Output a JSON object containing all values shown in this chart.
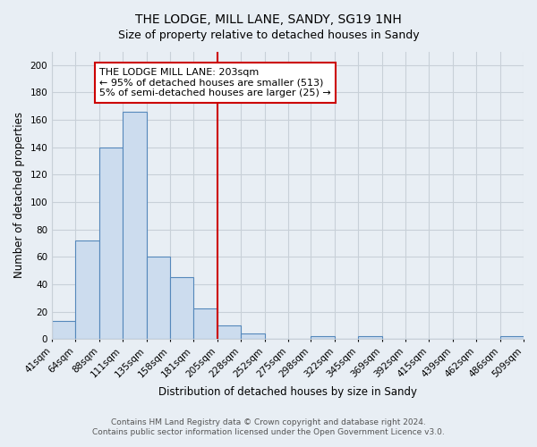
{
  "title": "THE LODGE, MILL LANE, SANDY, SG19 1NH",
  "subtitle": "Size of property relative to detached houses in Sandy",
  "xlabel": "Distribution of detached houses by size in Sandy",
  "ylabel": "Number of detached properties",
  "bar_color": "#ccdcee",
  "bar_edge_color": "#5588bb",
  "bin_labels": [
    "41sqm",
    "64sqm",
    "88sqm",
    "111sqm",
    "135sqm",
    "158sqm",
    "181sqm",
    "205sqm",
    "228sqm",
    "252sqm",
    "275sqm",
    "298sqm",
    "322sqm",
    "345sqm",
    "369sqm",
    "392sqm",
    "415sqm",
    "439sqm",
    "462sqm",
    "486sqm",
    "509sqm"
  ],
  "bin_edges": [
    41,
    64,
    88,
    111,
    135,
    158,
    181,
    205,
    228,
    252,
    275,
    298,
    322,
    345,
    369,
    392,
    415,
    439,
    462,
    486,
    509
  ],
  "bar_heights": [
    13,
    72,
    140,
    166,
    60,
    45,
    22,
    10,
    4,
    0,
    0,
    2,
    0,
    2,
    0,
    0,
    0,
    0,
    0,
    2
  ],
  "vline_x": 205,
  "vline_color": "#cc0000",
  "ylim": [
    0,
    210
  ],
  "yticks": [
    0,
    20,
    40,
    60,
    80,
    100,
    120,
    140,
    160,
    180,
    200
  ],
  "annotation_title": "THE LODGE MILL LANE: 203sqm",
  "annotation_line1": "← 95% of detached houses are smaller (513)",
  "annotation_line2": "5% of semi-detached houses are larger (25) →",
  "footer_line1": "Contains HM Land Registry data © Crown copyright and database right 2024.",
  "footer_line2": "Contains public sector information licensed under the Open Government Licence v3.0.",
  "background_color": "#e8eef4",
  "plot_bg_color": "#e8eef4",
  "grid_color": "#c8d0d8",
  "title_fontsize": 10,
  "subtitle_fontsize": 9,
  "axis_label_fontsize": 8.5,
  "tick_fontsize": 7.5,
  "annotation_fontsize": 8
}
